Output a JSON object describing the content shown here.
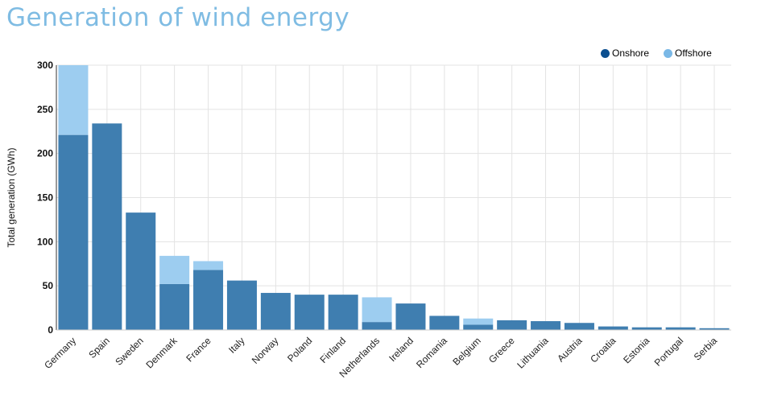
{
  "chart_data": {
    "type": "bar",
    "stacked": true,
    "title": "Generation of wind energy",
    "xlabel": "",
    "ylabel": "Total generation (GWh)",
    "ylim": [
      0,
      300
    ],
    "yticks": [
      0,
      50,
      100,
      150,
      200,
      250,
      300
    ],
    "grid": true,
    "legend_position": "top-right",
    "categories": [
      "Germany",
      "Spain",
      "Sweden",
      "Denmark",
      "France",
      "Italy",
      "Norway",
      "Poland",
      "Finland",
      "Netherlands",
      "Ireland",
      "Romania",
      "Belgium",
      "Greece",
      "Lithuania",
      "Austria",
      "Croatia",
      "Estonia",
      "Portugal",
      "Serbia"
    ],
    "series": [
      {
        "name": "Onshore",
        "color": "#3f7eb0",
        "legend_color": "#0b4f8f",
        "values": [
          221,
          234,
          133,
          52,
          68,
          56,
          42,
          40,
          40,
          9,
          30,
          16,
          6,
          11,
          10,
          8,
          4,
          3,
          3,
          2
        ]
      },
      {
        "name": "Offshore",
        "color": "#9dcdf0",
        "legend_color": "#7ab8e6",
        "values": [
          79,
          0,
          0,
          32,
          10,
          0,
          0,
          0,
          0,
          28,
          0,
          0,
          7,
          0,
          0,
          0,
          0,
          0,
          0,
          0
        ]
      }
    ]
  }
}
